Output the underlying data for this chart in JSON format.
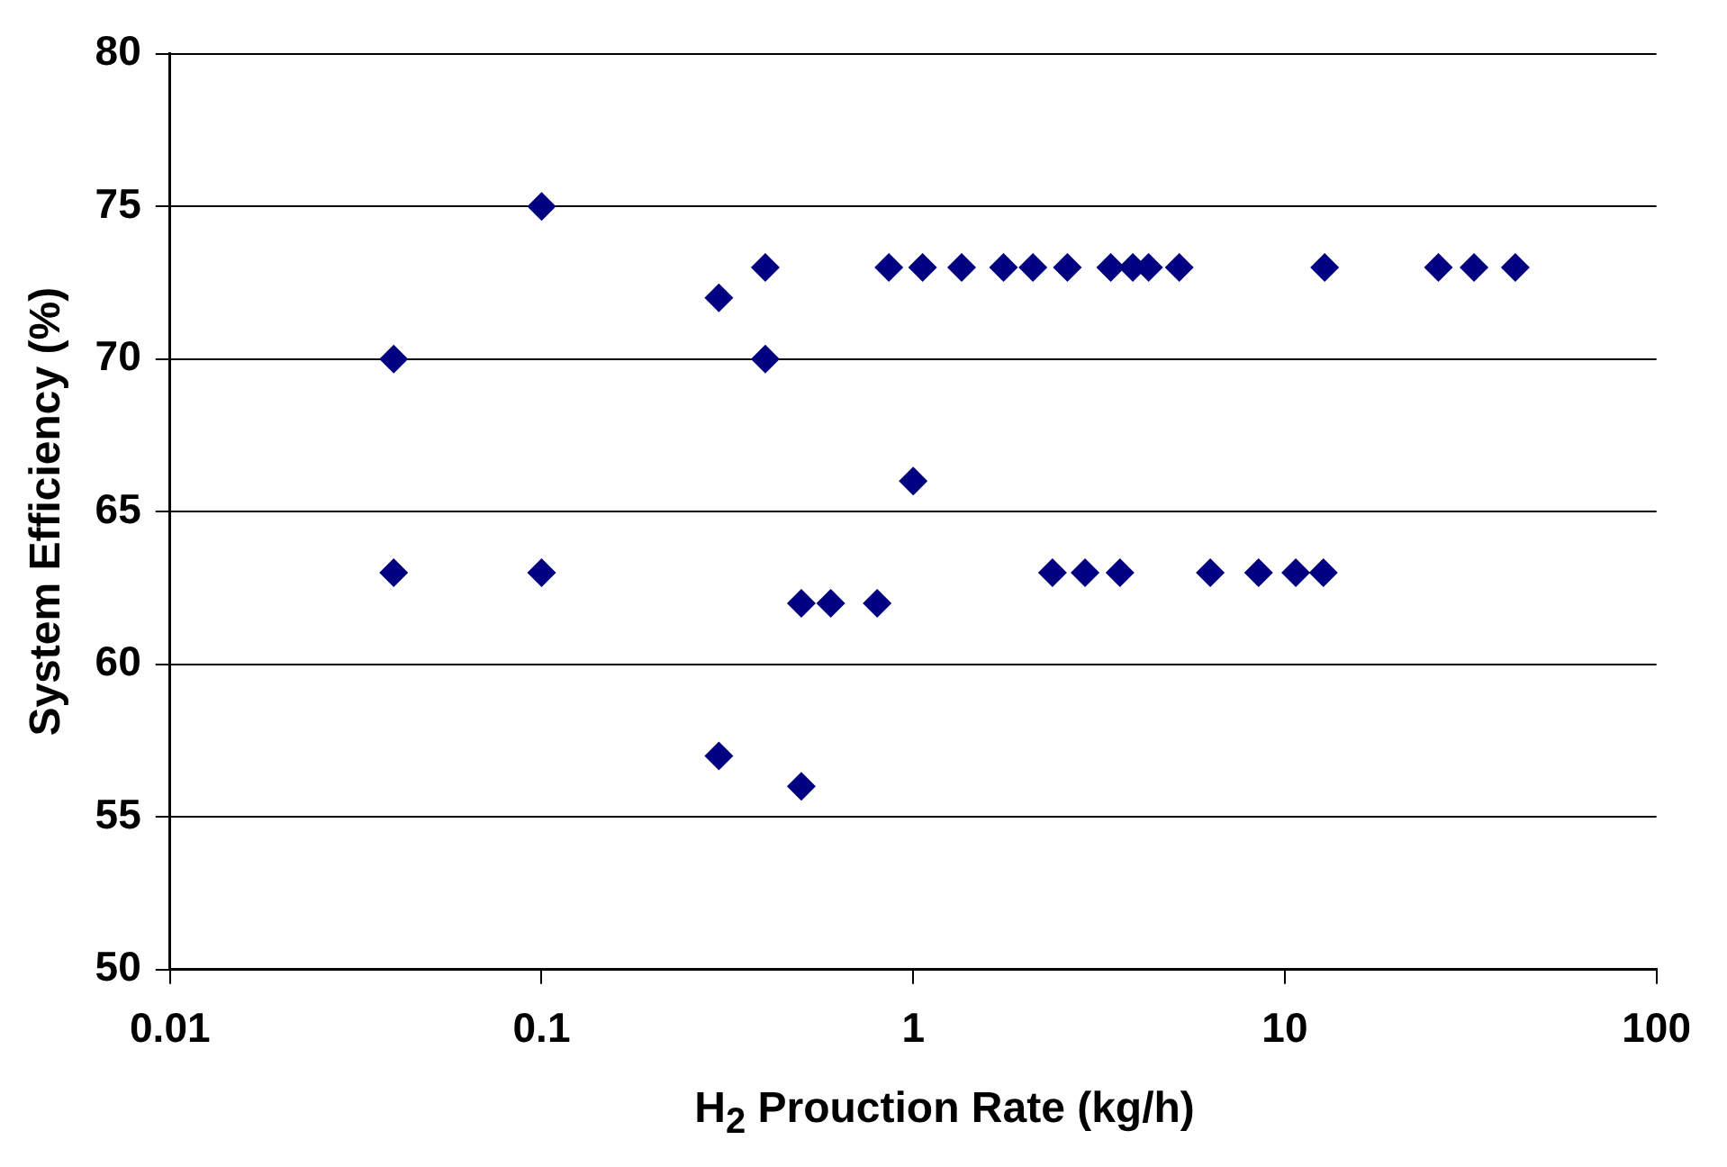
{
  "chart_data": {
    "type": "scatter",
    "xlabel": "H$_{2}$ Prouction Rate (kg/h)",
    "ylabel": "System Efficiency (%)",
    "log": "x",
    "xlim": [
      0.01,
      100
    ],
    "xticks": [
      0.01,
      0.1,
      1,
      10,
      100
    ],
    "ylim": [
      50,
      80
    ],
    "yticks": [
      50,
      55,
      60,
      65,
      70,
      75,
      80
    ],
    "grid": "y",
    "marker": "diamond",
    "legend": false,
    "series": [
      {
        "color": "#000080",
        "x": [
          0.04,
          0.04,
          0.1,
          0.1,
          0.3,
          0.3,
          0.4,
          0.4,
          0.5,
          0.5,
          0.6,
          0.8,
          1.0,
          0.86,
          1.06,
          1.35,
          1.75,
          2.1,
          2.6,
          3.4,
          3.9,
          4.3,
          5.2,
          12.8,
          25.9,
          32.3,
          41.7,
          2.37,
          2.9,
          3.6,
          6.3,
          8.5,
          10.7,
          12.7
        ],
        "values": [
          63,
          70,
          75,
          63,
          72,
          57,
          73,
          70,
          62,
          56,
          62,
          62,
          66,
          73,
          73,
          73,
          73,
          73,
          73,
          73,
          73,
          73,
          73,
          73,
          73,
          73,
          73,
          63,
          63,
          63,
          63,
          63,
          63,
          63
        ]
      }
    ]
  }
}
